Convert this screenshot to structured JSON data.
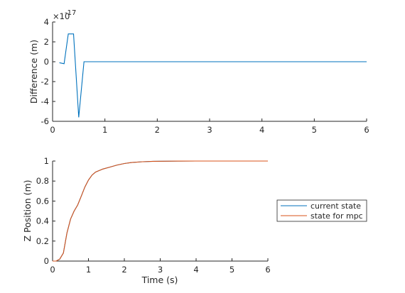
{
  "chart_data": [
    {
      "type": "line",
      "ylabel": "Difference (m)",
      "xlabel": "",
      "xlim": [
        0,
        6
      ],
      "ylim": [
        -6,
        4
      ],
      "xticks": [
        "0",
        "1",
        "2",
        "3",
        "4",
        "5",
        "6"
      ],
      "yticks": [
        "4",
        "2",
        "0",
        "-2",
        "-4",
        "-6"
      ],
      "y_exponent_label": "×10",
      "y_exponent": "-17",
      "grid": false,
      "series": [
        {
          "color": "#0072BD",
          "x": [
            0.13,
            0.22,
            0.3,
            0.4,
            0.5,
            0.6,
            0.7,
            1,
            2,
            3,
            4,
            5,
            6
          ],
          "y": [
            -0.1,
            -0.2,
            2.8,
            2.8,
            -5.6,
            0,
            0,
            0,
            0,
            0,
            0,
            0,
            0
          ]
        }
      ]
    },
    {
      "type": "line",
      "xlabel": "Time (s)",
      "ylabel": "Z Position (m)",
      "xlim": [
        0,
        6
      ],
      "ylim": [
        0,
        1
      ],
      "xticks": [
        "0",
        "1",
        "2",
        "3",
        "4",
        "5",
        "6"
      ],
      "yticks": [
        "1",
        "0.8",
        "0.6",
        "0.4",
        "0.2",
        "0"
      ],
      "grid": false,
      "legend_position": "outside-right",
      "series": [
        {
          "name": "current state",
          "color": "#0072BD",
          "x": [
            0.0,
            0.1,
            0.2,
            0.3,
            0.4,
            0.5,
            0.6,
            0.7,
            0.8,
            0.9,
            1.0,
            1.1,
            1.2,
            1.4,
            1.6,
            1.8,
            2.0,
            2.2,
            2.5,
            2.8,
            3.0,
            3.5,
            4.0,
            5.0,
            6.0
          ],
          "y": [
            0.0,
            0.0,
            0.02,
            0.08,
            0.28,
            0.42,
            0.5,
            0.56,
            0.65,
            0.74,
            0.81,
            0.86,
            0.89,
            0.92,
            0.94,
            0.96,
            0.975,
            0.985,
            0.993,
            0.997,
            0.998,
            0.999,
            1.0,
            1.0,
            1.0
          ]
        },
        {
          "name": "state for mpc",
          "color": "#D95319",
          "x": [
            0.0,
            0.1,
            0.2,
            0.3,
            0.4,
            0.5,
            0.6,
            0.7,
            0.8,
            0.9,
            1.0,
            1.1,
            1.2,
            1.4,
            1.6,
            1.8,
            2.0,
            2.2,
            2.5,
            2.8,
            3.0,
            3.5,
            4.0,
            5.0,
            6.0
          ],
          "y": [
            0.0,
            0.0,
            0.02,
            0.08,
            0.28,
            0.42,
            0.5,
            0.56,
            0.65,
            0.74,
            0.81,
            0.86,
            0.89,
            0.92,
            0.94,
            0.96,
            0.975,
            0.985,
            0.993,
            0.997,
            0.998,
            0.999,
            1.0,
            1.0,
            1.0
          ]
        }
      ]
    }
  ]
}
